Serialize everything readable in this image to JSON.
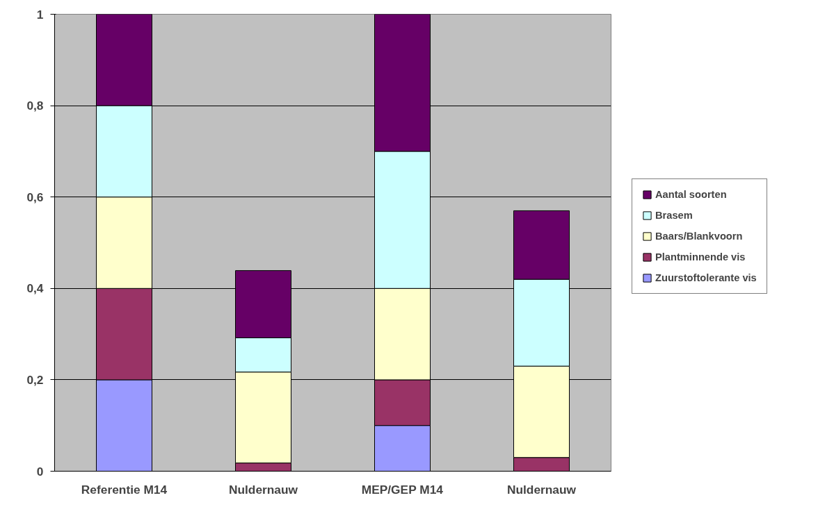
{
  "chart_data": {
    "type": "bar",
    "stacked": true,
    "categories": [
      "Referentie M14",
      "Nuldernauw",
      "MEP/GEP M14",
      "Nuldernauw"
    ],
    "series": [
      {
        "name": "Zuurstoftolerante vis",
        "color": "#9999ff",
        "values": [
          0.2,
          0,
          0.1,
          0
        ]
      },
      {
        "name": "Plantminnende vis",
        "color": "#993366",
        "values": [
          0.2,
          0.018,
          0.1,
          0.03
        ]
      },
      {
        "name": "Baars/Blankvoorn",
        "color": "#ffffcc",
        "values": [
          0.2,
          0.199,
          0.2,
          0.2
        ]
      },
      {
        "name": "Brasem",
        "color": "#ccffff",
        "values": [
          0.2,
          0.075,
          0.3,
          0.19
        ]
      },
      {
        "name": "Aantal soorten",
        "color": "#660066",
        "values": [
          0.2,
          0.147,
          0.3,
          0.15
        ]
      }
    ],
    "ylim": [
      0,
      1
    ],
    "yticks": [
      0,
      {
        "value": 0.2,
        "label": "0,2"
      },
      {
        "value": 0.4,
        "label": "0,4"
      },
      {
        "value": 0.6,
        "label": "0,6"
      },
      {
        "value": 0.8,
        "label": "0,8"
      },
      1
    ],
    "grid": "y",
    "legend": "right"
  }
}
